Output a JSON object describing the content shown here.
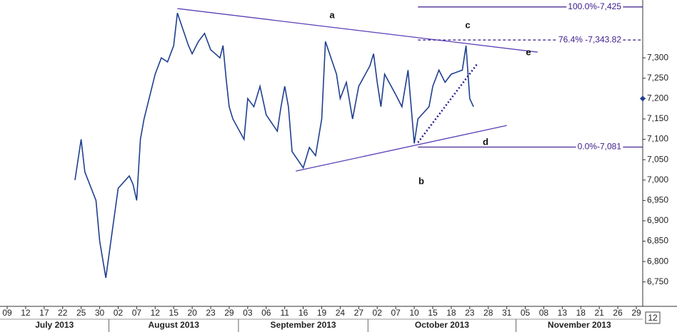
{
  "chart_data": {
    "type": "line",
    "series": [
      {
        "color": "#1f3f8f",
        "x": [
          "2013-07-24",
          "2013-07-25",
          "2013-07-26",
          "2013-07-29",
          "2013-07-30",
          "2013-07-31",
          "2013-08-01",
          "2013-08-02",
          "2013-08-05",
          "2013-08-06",
          "2013-08-07",
          "2013-08-08",
          "2013-08-09",
          "2013-08-12",
          "2013-08-13",
          "2013-08-14",
          "2013-08-15",
          "2013-08-16",
          "2013-08-19",
          "2013-08-20",
          "2013-08-21",
          "2013-08-22",
          "2013-08-23",
          "2013-08-26",
          "2013-08-27",
          "2013-08-28",
          "2013-08-29",
          "2013-08-30",
          "2013-09-02",
          "2013-09-03",
          "2013-09-04",
          "2013-09-05",
          "2013-09-06",
          "2013-09-09",
          "2013-09-10",
          "2013-09-11",
          "2013-09-12",
          "2013-09-13",
          "2013-09-16",
          "2013-09-17",
          "2013-09-18",
          "2013-09-19",
          "2013-09-20",
          "2013-09-23",
          "2013-09-24",
          "2013-09-25",
          "2013-09-26",
          "2013-09-27",
          "2013-09-30",
          "2013-10-01",
          "2013-10-02",
          "2013-10-03",
          "2013-10-04",
          "2013-10-07",
          "2013-10-08",
          "2013-10-09",
          "2013-10-10",
          "2013-10-11",
          "2013-10-14",
          "2013-10-15",
          "2013-10-16",
          "2013-10-17",
          "2013-10-18",
          "2013-10-21",
          "2013-10-22",
          "2013-10-23",
          "2013-10-24"
        ],
        "values": [
          7000,
          7100,
          7020,
          6950,
          6850,
          6760,
          6870,
          6980,
          7010,
          6990,
          6950,
          7100,
          7150,
          7260,
          7300,
          7290,
          7330,
          7410,
          7330,
          7310,
          7340,
          7360,
          7320,
          7300,
          7330,
          7250,
          7180,
          7150,
          7100,
          7200,
          7180,
          7230,
          7160,
          7120,
          7180,
          7230,
          7180,
          7070,
          7030,
          7080,
          7060,
          7150,
          7340,
          7260,
          7200,
          7240,
          7150,
          7230,
          7280,
          7310,
          7240,
          7180,
          7260,
          7210,
          7180,
          7270,
          7090,
          7150,
          7180,
          7230,
          7270,
          7240,
          7260,
          7270,
          7330,
          7200,
          7180
        ]
      }
    ],
    "ylim": [
      6690,
      7442
    ],
    "yticks": [
      {
        "value": 6750,
        "label": "6,750"
      },
      {
        "value": 6800,
        "label": "6,800"
      },
      {
        "value": 6850,
        "label": "6,850"
      },
      {
        "value": 6900,
        "label": "6,900"
      },
      {
        "value": 6950,
        "label": "6,950"
      },
      {
        "value": 7000,
        "label": "7,000"
      },
      {
        "value": 7050,
        "label": "7,050"
      },
      {
        "value": 7100,
        "label": "7,100"
      },
      {
        "value": 7150,
        "label": "7,150"
      },
      {
        "value": 7200,
        "label": "7,200"
      },
      {
        "value": 7250,
        "label": "7,250"
      },
      {
        "value": 7300,
        "label": "7,300"
      }
    ],
    "xticks": [
      {
        "value": "2013-07-09",
        "label": "09"
      },
      {
        "value": "2013-07-12",
        "label": "12"
      },
      {
        "value": "2013-07-17",
        "label": "17"
      },
      {
        "value": "2013-07-22",
        "label": "22"
      },
      {
        "value": "2013-07-25",
        "label": "25"
      },
      {
        "value": "2013-07-30",
        "label": "30"
      },
      {
        "value": "2013-08-02",
        "label": "02"
      },
      {
        "value": "2013-08-07",
        "label": "07"
      },
      {
        "value": "2013-08-12",
        "label": "12"
      },
      {
        "value": "2013-08-15",
        "label": "15"
      },
      {
        "value": "2013-08-20",
        "label": "20"
      },
      {
        "value": "2013-08-23",
        "label": "23"
      },
      {
        "value": "2013-08-29",
        "label": "29"
      },
      {
        "value": "2013-09-03",
        "label": "03"
      },
      {
        "value": "2013-09-06",
        "label": "06"
      },
      {
        "value": "2013-09-11",
        "label": "11"
      },
      {
        "value": "2013-09-16",
        "label": "16"
      },
      {
        "value": "2013-09-19",
        "label": "19"
      },
      {
        "value": "2013-09-24",
        "label": "24"
      },
      {
        "value": "2013-09-27",
        "label": "27"
      },
      {
        "value": "2013-10-02",
        "label": "02"
      },
      {
        "value": "2013-10-07",
        "label": "07"
      },
      {
        "value": "2013-10-10",
        "label": "10"
      },
      {
        "value": "2013-10-15",
        "label": "15"
      },
      {
        "value": "2013-10-18",
        "label": "18"
      },
      {
        "value": "2013-10-23",
        "label": "23"
      },
      {
        "value": "2013-10-28",
        "label": "28"
      },
      {
        "value": "2013-10-31",
        "label": "31"
      },
      {
        "value": "2013-11-05",
        "label": "05"
      },
      {
        "value": "2013-11-08",
        "label": "08"
      },
      {
        "value": "2013-11-13",
        "label": "13"
      },
      {
        "value": "2013-11-18",
        "label": "18"
      },
      {
        "value": "2013-11-21",
        "label": "21"
      },
      {
        "value": "2013-11-26",
        "label": "26"
      },
      {
        "value": "2013-11-29",
        "label": "29"
      }
    ],
    "months": [
      "July 2013",
      "August 2013",
      "September 2013",
      "October 2013",
      "November 2013"
    ],
    "trendlines": [
      {
        "color": "#5a3fb5",
        "style": "solid",
        "x": [
          "2013-08-16",
          "2013-11-07"
        ],
        "values": [
          7421,
          7314
        ]
      },
      {
        "color": "#5a3fb5",
        "style": "solid",
        "x": [
          "2013-09-14",
          "2013-10-31"
        ],
        "values": [
          7022,
          7134
        ]
      },
      {
        "color": "#2a1a8c",
        "style": "dotted",
        "x": [
          "2013-10-11",
          "2013-10-25"
        ],
        "values": [
          7092,
          7285
        ]
      }
    ],
    "fib_levels": [
      {
        "value": 7425,
        "label": "100.0%-7,425",
        "start": "2013-10-11",
        "style": "solid"
      },
      {
        "value": 7343.82,
        "label": "76.4% -7,343.82",
        "start": "2013-10-11",
        "style": "dashed"
      },
      {
        "value": 7081,
        "label": "0.0%-7,081",
        "start": "2013-10-11",
        "style": "solid"
      }
    ],
    "wave_labels": [
      "a",
      "b",
      "c",
      "d",
      "e"
    ],
    "current_marker": 7200,
    "corner_label": "12"
  }
}
